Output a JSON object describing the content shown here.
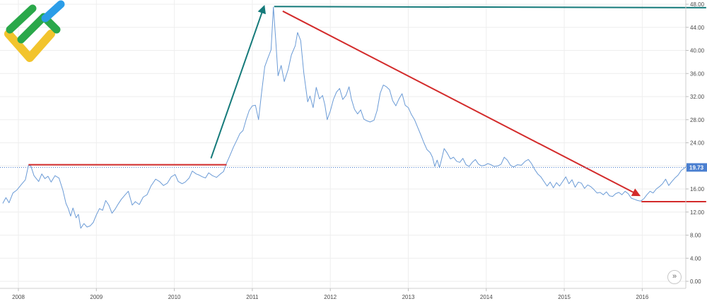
{
  "colors": {
    "series": "#6b9bd6",
    "price_label_bg": "#4a7fd0",
    "red_lines": "#d32b2b",
    "teal_lines": "#157a7a",
    "grid": "#eeeeee",
    "logo_green": "#2aa84a",
    "logo_blue": "#2b9de8",
    "logo_yellow": "#f2c42d"
  },
  "icons": {
    "logo": "company-logo",
    "scroll": "double-chevron-right-icon"
  },
  "scroll_button": {
    "glyph": "»"
  },
  "chart_data": {
    "type": "line",
    "title": "",
    "xlabel": "",
    "ylabel": "",
    "x_ticks": [
      "2008",
      "2009",
      "2010",
      "2011",
      "2012",
      "2013",
      "2014",
      "2015",
      "2016"
    ],
    "y_ticks": [
      "0.00",
      "4.00",
      "8.00",
      "12.00",
      "16.00",
      "20.00",
      "24.00",
      "28.00",
      "32.00",
      "36.00",
      "40.00",
      "44.00",
      "48.00"
    ],
    "ylim": [
      0,
      48
    ],
    "xlim": [
      2007.8,
      2016.82
    ],
    "grid": true,
    "last_price": {
      "value": 19.73,
      "label": "19.73"
    },
    "series": [
      {
        "values": [
          [
            2007.8,
            13.5
          ],
          [
            2007.84,
            14.5
          ],
          [
            2007.88,
            13.6
          ],
          [
            2007.93,
            15.3
          ],
          [
            2007.98,
            15.8
          ],
          [
            2008.04,
            16.8
          ],
          [
            2008.09,
            17.6
          ],
          [
            2008.13,
            20.1
          ],
          [
            2008.16,
            20.0
          ],
          [
            2008.2,
            18.3
          ],
          [
            2008.26,
            17.3
          ],
          [
            2008.3,
            18.6
          ],
          [
            2008.34,
            17.8
          ],
          [
            2008.38,
            18.2
          ],
          [
            2008.42,
            17.2
          ],
          [
            2008.47,
            18.3
          ],
          [
            2008.52,
            17.9
          ],
          [
            2008.57,
            15.8
          ],
          [
            2008.61,
            13.5
          ],
          [
            2008.64,
            12.6
          ],
          [
            2008.67,
            11.3
          ],
          [
            2008.7,
            12.7
          ],
          [
            2008.74,
            11.0
          ],
          [
            2008.77,
            11.6
          ],
          [
            2008.8,
            9.2
          ],
          [
            2008.84,
            10.0
          ],
          [
            2008.88,
            9.4
          ],
          [
            2008.92,
            9.6
          ],
          [
            2008.96,
            10.2
          ],
          [
            2009.0,
            11.5
          ],
          [
            2009.04,
            12.6
          ],
          [
            2009.08,
            12.3
          ],
          [
            2009.12,
            14.0
          ],
          [
            2009.16,
            13.2
          ],
          [
            2009.2,
            11.8
          ],
          [
            2009.24,
            12.5
          ],
          [
            2009.28,
            13.4
          ],
          [
            2009.32,
            14.2
          ],
          [
            2009.37,
            15.0
          ],
          [
            2009.41,
            15.6
          ],
          [
            2009.46,
            13.2
          ],
          [
            2009.5,
            13.8
          ],
          [
            2009.55,
            13.3
          ],
          [
            2009.6,
            14.6
          ],
          [
            2009.65,
            15.0
          ],
          [
            2009.7,
            16.5
          ],
          [
            2009.76,
            17.7
          ],
          [
            2009.81,
            17.3
          ],
          [
            2009.86,
            16.6
          ],
          [
            2009.91,
            17.0
          ],
          [
            2009.96,
            18.1
          ],
          [
            2010.01,
            18.5
          ],
          [
            2010.05,
            17.3
          ],
          [
            2010.1,
            16.9
          ],
          [
            2010.14,
            17.2
          ],
          [
            2010.19,
            17.9
          ],
          [
            2010.23,
            19.1
          ],
          [
            2010.28,
            18.6
          ],
          [
            2010.32,
            18.4
          ],
          [
            2010.36,
            18.1
          ],
          [
            2010.4,
            17.9
          ],
          [
            2010.44,
            18.8
          ],
          [
            2010.49,
            18.3
          ],
          [
            2010.54,
            18.0
          ],
          [
            2010.59,
            18.6
          ],
          [
            2010.63,
            19.0
          ],
          [
            2010.67,
            20.5
          ],
          [
            2010.71,
            21.7
          ],
          [
            2010.76,
            23.3
          ],
          [
            2010.8,
            24.4
          ],
          [
            2010.84,
            25.6
          ],
          [
            2010.88,
            26.1
          ],
          [
            2010.92,
            28.0
          ],
          [
            2010.96,
            29.6
          ],
          [
            2011.0,
            30.4
          ],
          [
            2011.04,
            30.5
          ],
          [
            2011.08,
            28.0
          ],
          [
            2011.12,
            32.8
          ],
          [
            2011.16,
            37.2
          ],
          [
            2011.2,
            38.7
          ],
          [
            2011.24,
            40.1
          ],
          [
            2011.27,
            47.5
          ],
          [
            2011.3,
            41.8
          ],
          [
            2011.33,
            35.6
          ],
          [
            2011.37,
            37.4
          ],
          [
            2011.41,
            34.6
          ],
          [
            2011.46,
            36.7
          ],
          [
            2011.5,
            39.2
          ],
          [
            2011.55,
            40.8
          ],
          [
            2011.58,
            43.1
          ],
          [
            2011.62,
            41.7
          ],
          [
            2011.66,
            36.1
          ],
          [
            2011.71,
            31.1
          ],
          [
            2011.74,
            32.1
          ],
          [
            2011.78,
            30.1
          ],
          [
            2011.82,
            33.6
          ],
          [
            2011.86,
            31.6
          ],
          [
            2011.9,
            32.2
          ],
          [
            2011.93,
            30.6
          ],
          [
            2011.96,
            28.0
          ],
          [
            2012.0,
            29.5
          ],
          [
            2012.04,
            31.5
          ],
          [
            2012.08,
            32.8
          ],
          [
            2012.12,
            33.4
          ],
          [
            2012.16,
            31.5
          ],
          [
            2012.2,
            32.2
          ],
          [
            2012.24,
            33.7
          ],
          [
            2012.27,
            31.6
          ],
          [
            2012.31,
            29.8
          ],
          [
            2012.35,
            29.0
          ],
          [
            2012.39,
            29.7
          ],
          [
            2012.43,
            28.1
          ],
          [
            2012.47,
            27.8
          ],
          [
            2012.51,
            27.6
          ],
          [
            2012.56,
            27.9
          ],
          [
            2012.6,
            29.6
          ],
          [
            2012.64,
            32.6
          ],
          [
            2012.68,
            34.0
          ],
          [
            2012.72,
            33.7
          ],
          [
            2012.76,
            33.2
          ],
          [
            2012.8,
            31.3
          ],
          [
            2012.84,
            30.4
          ],
          [
            2012.88,
            31.6
          ],
          [
            2012.92,
            32.5
          ],
          [
            2012.96,
            30.5
          ],
          [
            2013.0,
            30.1
          ],
          [
            2013.04,
            28.9
          ],
          [
            2013.08,
            28.0
          ],
          [
            2013.12,
            26.7
          ],
          [
            2013.16,
            25.4
          ],
          [
            2013.2,
            24.0
          ],
          [
            2013.24,
            22.8
          ],
          [
            2013.28,
            22.3
          ],
          [
            2013.31,
            21.5
          ],
          [
            2013.34,
            19.9
          ],
          [
            2013.37,
            21.0
          ],
          [
            2013.4,
            19.7
          ],
          [
            2013.43,
            21.3
          ],
          [
            2013.46,
            23.0
          ],
          [
            2013.5,
            22.2
          ],
          [
            2013.54,
            21.2
          ],
          [
            2013.58,
            21.5
          ],
          [
            2013.62,
            20.8
          ],
          [
            2013.66,
            20.6
          ],
          [
            2013.7,
            21.3
          ],
          [
            2013.74,
            20.2
          ],
          [
            2013.78,
            19.9
          ],
          [
            2013.82,
            20.6
          ],
          [
            2013.86,
            21.1
          ],
          [
            2013.9,
            20.3
          ],
          [
            2013.94,
            20.0
          ],
          [
            2013.98,
            20.1
          ],
          [
            2014.02,
            20.4
          ],
          [
            2014.06,
            20.2
          ],
          [
            2014.1,
            19.9
          ],
          [
            2014.15,
            20.0
          ],
          [
            2014.19,
            20.3
          ],
          [
            2014.23,
            21.5
          ],
          [
            2014.27,
            21.0
          ],
          [
            2014.31,
            20.1
          ],
          [
            2014.35,
            19.8
          ],
          [
            2014.4,
            20.2
          ],
          [
            2014.45,
            20.1
          ],
          [
            2014.5,
            20.8
          ],
          [
            2014.54,
            21.1
          ],
          [
            2014.58,
            20.4
          ],
          [
            2014.62,
            19.4
          ],
          [
            2014.66,
            18.6
          ],
          [
            2014.7,
            18.1
          ],
          [
            2014.74,
            17.3
          ],
          [
            2014.78,
            16.5
          ],
          [
            2014.82,
            17.2
          ],
          [
            2014.86,
            16.2
          ],
          [
            2014.9,
            17.1
          ],
          [
            2014.94,
            16.5
          ],
          [
            2014.98,
            17.3
          ],
          [
            2015.02,
            18.1
          ],
          [
            2015.06,
            16.9
          ],
          [
            2015.1,
            17.6
          ],
          [
            2015.14,
            16.3
          ],
          [
            2015.18,
            17.2
          ],
          [
            2015.22,
            17.0
          ],
          [
            2015.26,
            16.1
          ],
          [
            2015.3,
            16.7
          ],
          [
            2015.34,
            16.4
          ],
          [
            2015.38,
            15.9
          ],
          [
            2015.42,
            15.3
          ],
          [
            2015.46,
            15.4
          ],
          [
            2015.5,
            15.0
          ],
          [
            2015.54,
            15.5
          ],
          [
            2015.58,
            14.8
          ],
          [
            2015.62,
            14.7
          ],
          [
            2015.66,
            15.2
          ],
          [
            2015.7,
            15.4
          ],
          [
            2015.74,
            15.0
          ],
          [
            2015.78,
            15.6
          ],
          [
            2015.82,
            15.2
          ],
          [
            2015.86,
            14.4
          ],
          [
            2015.9,
            14.2
          ],
          [
            2015.94,
            14.0
          ],
          [
            2015.98,
            13.9
          ],
          [
            2016.02,
            14.3
          ],
          [
            2016.06,
            15.0
          ],
          [
            2016.1,
            15.6
          ],
          [
            2016.14,
            15.3
          ],
          [
            2016.18,
            16.0
          ],
          [
            2016.22,
            16.4
          ],
          [
            2016.26,
            16.9
          ],
          [
            2016.3,
            17.7
          ],
          [
            2016.34,
            16.6
          ],
          [
            2016.38,
            17.3
          ],
          [
            2016.42,
            17.9
          ],
          [
            2016.46,
            18.4
          ],
          [
            2016.5,
            19.2
          ],
          [
            2016.54,
            19.6
          ],
          [
            2016.58,
            20.2
          ],
          [
            2016.62,
            19.8
          ],
          [
            2016.66,
            20.4
          ],
          [
            2016.7,
            19.73
          ]
        ]
      }
    ],
    "annotations": [
      {
        "kind": "horizontal-line",
        "color": "red",
        "from": [
          2008.13,
          20.2
        ],
        "to": [
          2010.67,
          20.2
        ]
      },
      {
        "kind": "arrow",
        "color": "teal",
        "from": [
          2010.47,
          21.3
        ],
        "to": [
          2011.15,
          47.6
        ]
      },
      {
        "kind": "horizontal-line",
        "color": "teal",
        "from": [
          2011.28,
          47.6
        ],
        "to": [
          2016.82,
          47.4
        ]
      },
      {
        "kind": "arrow",
        "color": "red",
        "from": [
          2011.39,
          46.8
        ],
        "to": [
          2015.96,
          14.9
        ]
      },
      {
        "kind": "horizontal-line",
        "color": "red",
        "from": [
          2015.99,
          13.8
        ],
        "to": [
          2016.82,
          13.8
        ]
      }
    ]
  }
}
